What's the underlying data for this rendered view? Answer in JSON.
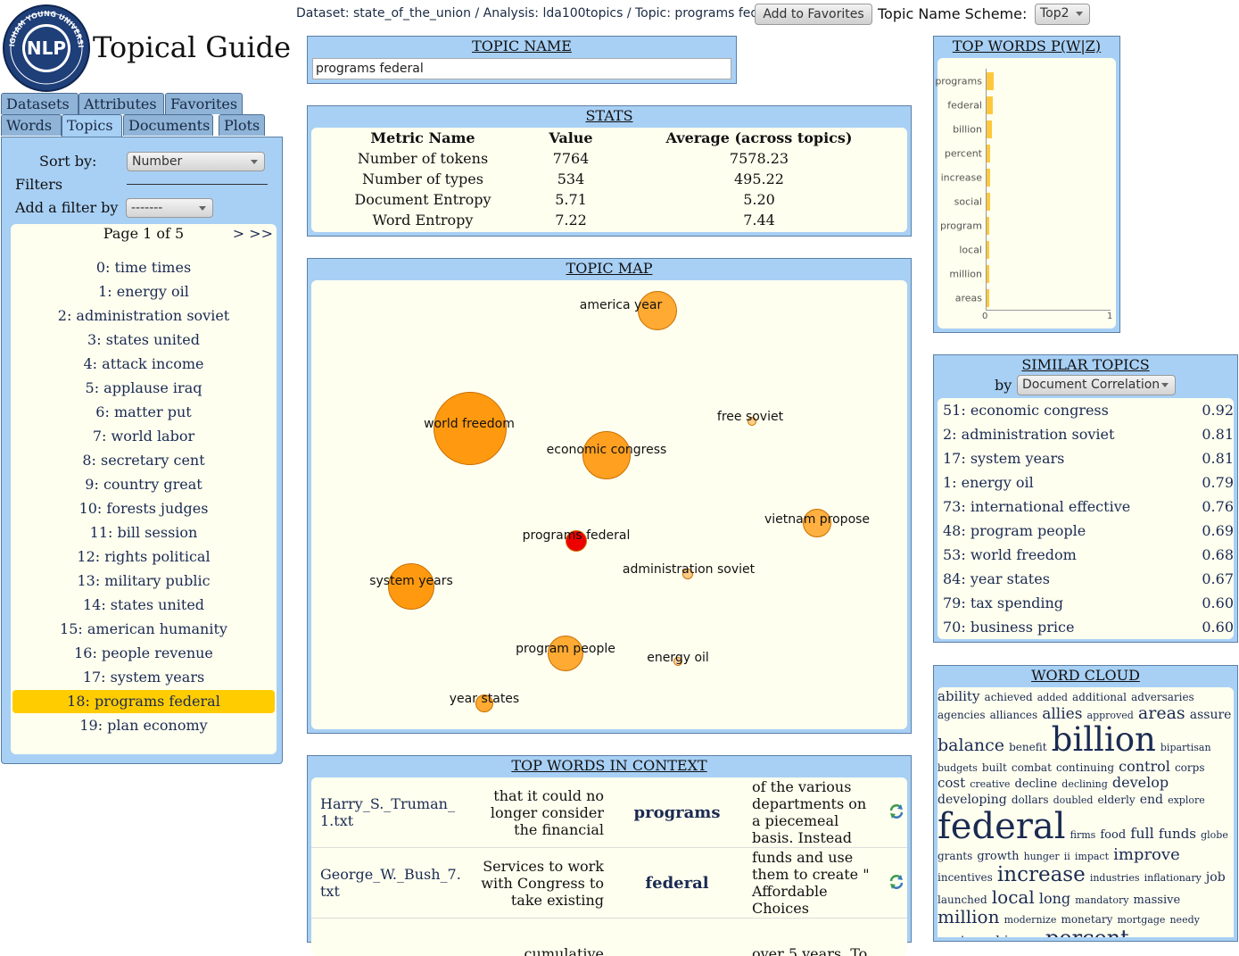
{
  "header": {
    "logo_text": "NLP",
    "app_title": "Topical Guide",
    "breadcrumb": "Dataset: state_of_the_union / Analysis: lda100topics / Topic: programs federal",
    "favorites_button": "Add to Favorites",
    "scheme_label": "Topic Name Scheme:",
    "scheme_value": "Top2"
  },
  "nav": {
    "tabs_row1": [
      "Datasets",
      "Attributes",
      "Favorites"
    ],
    "tabs_row2": [
      "Words",
      "Topics",
      "Documents",
      "Plots"
    ],
    "active_tab": "Topics"
  },
  "sidebar": {
    "sort_label": "Sort by:",
    "sort_value": "Number",
    "filters_label": "Filters",
    "add_filter_label": "Add a filter by",
    "add_filter_value": "-------",
    "page_text": "Page 1 of 5",
    "page_nav": "> >>",
    "topics": [
      "0: time times",
      "1: energy oil",
      "2: administration soviet",
      "3: states united",
      "4: attack income",
      "5: applause iraq",
      "6: matter put",
      "7: world labor",
      "8: secretary cent",
      "9: country great",
      "10: forests judges",
      "11: bill session",
      "12: rights political",
      "13: military public",
      "14: states united",
      "15: american humanity",
      "16: people revenue",
      "17: system years",
      "18: programs federal",
      "19: plan economy"
    ],
    "selected_index": 18
  },
  "topic_name": {
    "title": "TOPIC NAME",
    "value": "programs federal"
  },
  "stats": {
    "title": "STATS",
    "headers": [
      "Metric Name",
      "Value",
      "Average (across topics)"
    ],
    "rows": [
      [
        "Number of tokens",
        "7764",
        "7578.23"
      ],
      [
        "Number of types",
        "534",
        "495.22"
      ],
      [
        "Document Entropy",
        "5.71",
        "5.20"
      ],
      [
        "Word Entropy",
        "7.22",
        "7.44"
      ]
    ]
  },
  "topic_map": {
    "title": "TOPIC MAP",
    "bubbles": [
      {
        "label": "america year",
        "color": "#ffaa33"
      },
      {
        "label": "world freedom",
        "color": "#ff9a10"
      },
      {
        "label": "free soviet",
        "color": "#ffcc88"
      },
      {
        "label": "economic congress",
        "color": "#ffa020"
      },
      {
        "label": "vietnam propose",
        "color": "#ffb040"
      },
      {
        "label": "programs federal",
        "color": "#ee0000"
      },
      {
        "label": "administration soviet",
        "color": "#ffcc88"
      },
      {
        "label": "system years",
        "color": "#ff9a10"
      },
      {
        "label": "program people",
        "color": "#ffaa33"
      },
      {
        "label": "energy oil",
        "color": "#ffd6a0"
      },
      {
        "label": "year states",
        "color": "#ffaa33"
      }
    ]
  },
  "context": {
    "title": "TOP WORDS IN CONTEXT",
    "rows": [
      {
        "doc": "Harry_S._Truman_1.txt",
        "left": "that it could no longer consider the financial",
        "word": "programs",
        "right": "of the various departments on a piecemeal basis. Instead"
      },
      {
        "doc": "George_W._Bush_7.txt",
        "left": "Services to work with Congress to take existing",
        "word": "federal",
        "right": "funds and use them to create \" Affordable Choices"
      },
      {
        "doc": "",
        "left": "cumulative",
        "word": "",
        "right": "over 5 years. To"
      }
    ]
  },
  "top_words": {
    "title": "TOP WORDS P(W|Z)",
    "chart_data": {
      "type": "bar",
      "orientation": "horizontal",
      "categories": [
        "programs",
        "federal",
        "billion",
        "percent",
        "increase",
        "social",
        "program",
        "local",
        "million",
        "areas"
      ],
      "values": [
        0.055,
        0.05,
        0.045,
        0.03,
        0.028,
        0.026,
        0.024,
        0.022,
        0.02,
        0.018
      ],
      "xlim": [
        0,
        1
      ],
      "xticks": [
        "0",
        "1"
      ],
      "bar_color": "#ffc83c"
    }
  },
  "similar": {
    "title": "SIMILAR TOPICS",
    "by_label": "by",
    "by_value": "Document Correlation",
    "rows": [
      [
        "51: economic congress",
        "0.92"
      ],
      [
        "2: administration soviet",
        "0.81"
      ],
      [
        "17: system years",
        "0.81"
      ],
      [
        "1: energy oil",
        "0.79"
      ],
      [
        "73: international effective",
        "0.76"
      ],
      [
        "48: program people",
        "0.69"
      ],
      [
        "53: world freedom",
        "0.68"
      ],
      [
        "84: year states",
        "0.67"
      ],
      [
        "79: tax spending",
        "0.60"
      ],
      [
        "70: business price",
        "0.60"
      ]
    ]
  },
  "cloud": {
    "title": "WORD CLOUD",
    "words": [
      [
        "ability",
        15
      ],
      [
        "achieved",
        12
      ],
      [
        "added",
        11
      ],
      [
        "additional",
        12
      ],
      [
        "adversaries",
        12
      ],
      [
        "agencies",
        12
      ],
      [
        "alliances",
        12
      ],
      [
        "allies",
        17
      ],
      [
        "approved",
        11
      ],
      [
        "areas",
        19
      ],
      [
        "assure",
        14
      ],
      [
        "balance",
        19
      ],
      [
        "benefit",
        12
      ],
      [
        "billion",
        37
      ],
      [
        "bipartisan",
        11
      ],
      [
        "budgets",
        11
      ],
      [
        "built",
        12
      ],
      [
        "combat",
        12
      ],
      [
        "continuing",
        12
      ],
      [
        "control",
        16
      ],
      [
        "corps",
        12
      ],
      [
        "cost",
        15
      ],
      [
        "creative",
        11
      ],
      [
        "decline",
        13
      ],
      [
        "declining",
        11
      ],
      [
        "develop",
        16
      ],
      [
        "developing",
        14
      ],
      [
        "dollars",
        12
      ],
      [
        "doubled",
        11
      ],
      [
        "elderly",
        12
      ],
      [
        "end",
        14
      ],
      [
        "explore",
        11
      ],
      [
        "federal",
        40
      ],
      [
        "firms",
        11
      ],
      [
        "food",
        13
      ],
      [
        "full",
        16
      ],
      [
        "funds",
        15
      ],
      [
        "globe",
        11
      ],
      [
        "grants",
        12
      ],
      [
        "growth",
        13
      ],
      [
        "hunger",
        11
      ],
      [
        "ii",
        11
      ],
      [
        "impact",
        11
      ],
      [
        "improve",
        18
      ],
      [
        "incentives",
        12
      ],
      [
        "increase",
        23
      ],
      [
        "industries",
        11
      ],
      [
        "inflationary",
        11
      ],
      [
        "job",
        14
      ],
      [
        "launched",
        12
      ],
      [
        "local",
        20
      ],
      [
        "long",
        16
      ],
      [
        "mandatory",
        11
      ],
      [
        "massive",
        13
      ],
      [
        "million",
        20
      ],
      [
        "modernize",
        11
      ],
      [
        "monetary",
        12
      ],
      [
        "mortgage",
        11
      ],
      [
        "needy",
        11
      ],
      [
        "partnership",
        15
      ],
      [
        "pay",
        12
      ],
      [
        "percent",
        24
      ]
    ]
  }
}
